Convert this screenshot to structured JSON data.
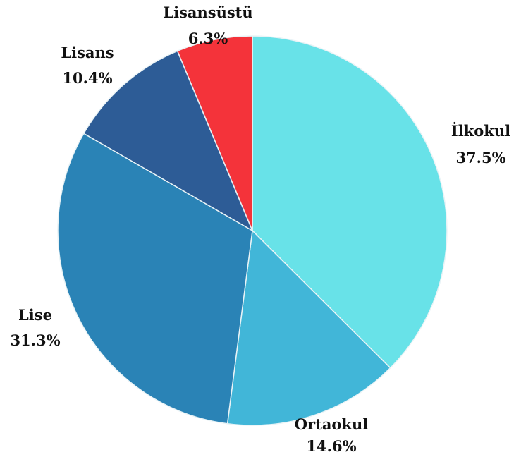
{
  "chart_data": {
    "type": "pie",
    "title": "",
    "start_angle_deg": 0,
    "direction": "clockwise",
    "slices": [
      {
        "label": "İlkokul",
        "value": 37.5,
        "percent_label": "37.5%",
        "color": "#68E2E8"
      },
      {
        "label": "Ortaokul",
        "value": 14.6,
        "percent_label": "14.6%",
        "color": "#41B6D8"
      },
      {
        "label": "Lise",
        "value": 31.3,
        "percent_label": "31.3%",
        "color": "#2A83B6"
      },
      {
        "label": "Lisans",
        "value": 10.4,
        "percent_label": "10.4%",
        "color": "#2D5C96"
      },
      {
        "label": "Lisansüstü",
        "value": 6.3,
        "percent_label": "6.3%",
        "color": "#F4333A"
      }
    ],
    "legend": "none",
    "label_placement": "outside"
  }
}
